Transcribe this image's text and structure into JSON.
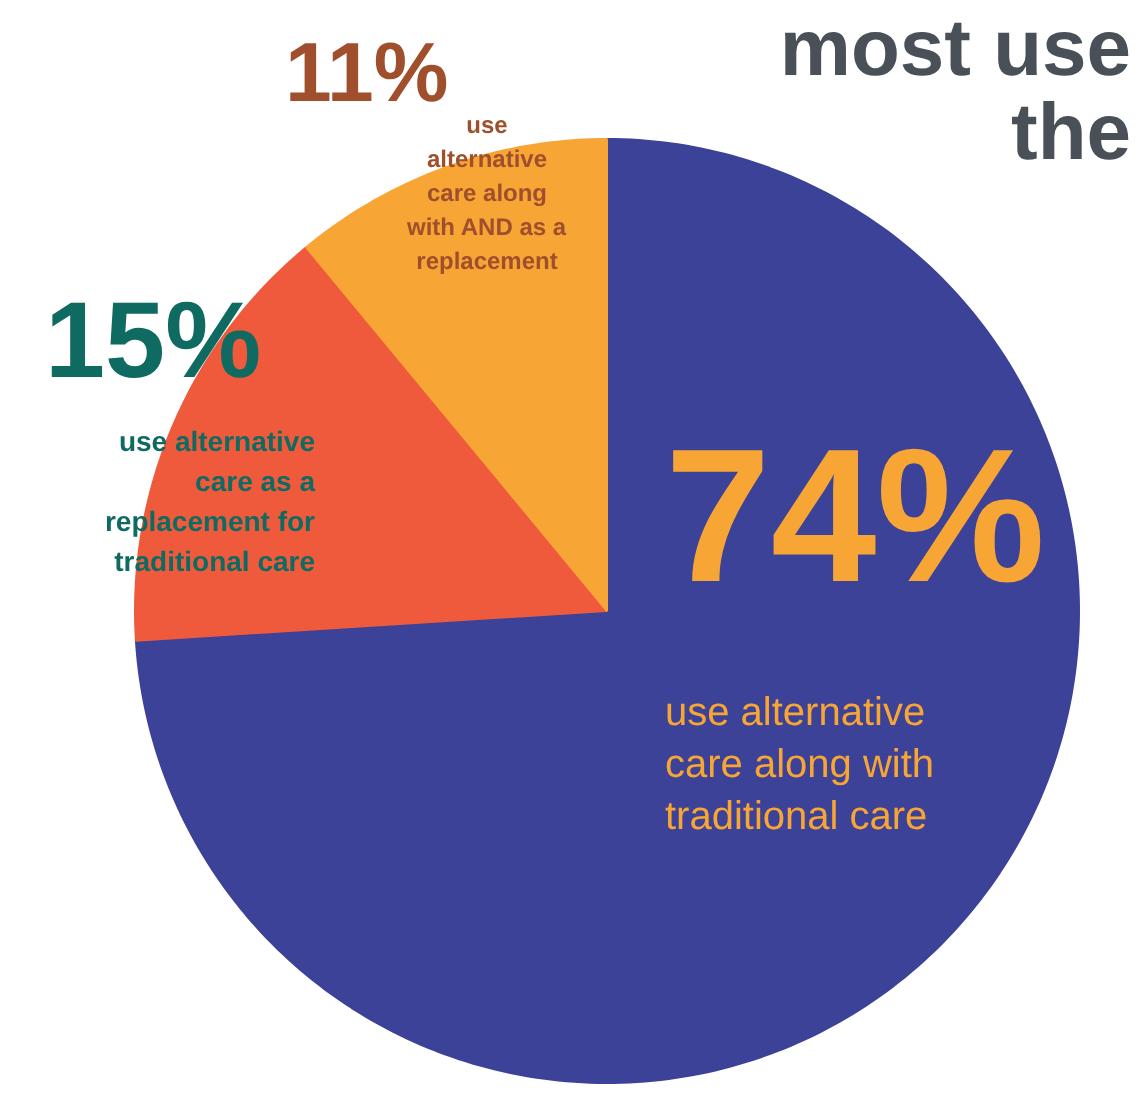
{
  "chart_data": {
    "type": "pie",
    "categories": [
      "use alternative care along with traditional care",
      "use alternative care as a replacement for traditional care",
      "use alternative care along with AND as a replacement"
    ],
    "values": [
      74,
      15,
      11
    ],
    "colors": [
      "#3b4297",
      "#ef5a3c",
      "#f7a535"
    ],
    "value_labels": [
      "74%",
      "15%",
      "11%"
    ],
    "annotations": [
      "most use",
      "the"
    ]
  }
}
